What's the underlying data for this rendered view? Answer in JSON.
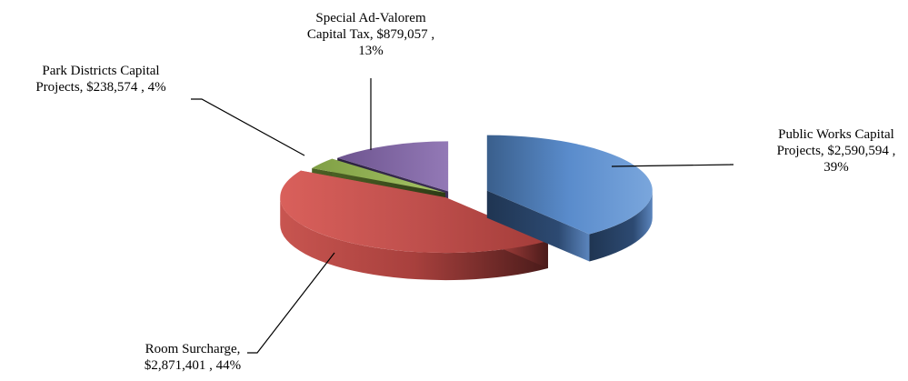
{
  "chart_data": {
    "type": "pie",
    "title": "",
    "slices": [
      {
        "name": "Public Works Capital Projects",
        "value": 2590594,
        "percent": 39,
        "color": "#4f81bd",
        "label_lines": [
          "Public Works Capital",
          "Projects,  $2,590,594 ,",
          "39%"
        ]
      },
      {
        "name": "Room Surcharge",
        "value": 2871401,
        "percent": 44,
        "color": "#c0504d",
        "label_lines": [
          "Room Surcharge,",
          "$2,871,401 , 44%"
        ]
      },
      {
        "name": "Park Districts Capital Projects",
        "value": 238574,
        "percent": 4,
        "color": "#9bbb59",
        "label_lines": [
          "Park Districts Capital",
          "Projects,  $238,574 , 4%"
        ]
      },
      {
        "name": "Special Ad-Valorem Capital Tax",
        "value": 879057,
        "percent": 13,
        "color": "#8064a2",
        "label_lines": [
          "Special Ad-Valorem",
          "Capital Tax,  $879,057 ,",
          "13%"
        ]
      }
    ],
    "legend": "none",
    "style": "3d-exploded"
  }
}
